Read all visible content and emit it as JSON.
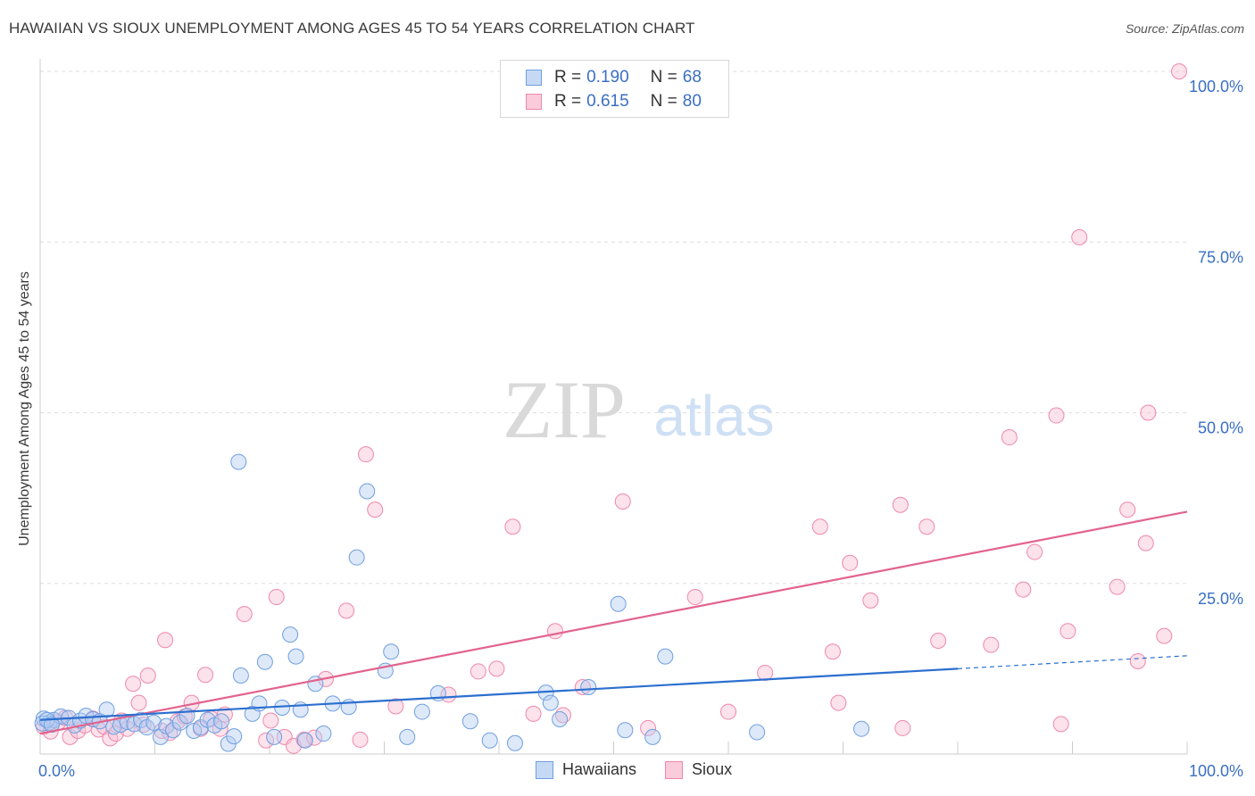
{
  "title": "HAWAIIAN VS SIOUX UNEMPLOYMENT AMONG AGES 45 TO 54 YEARS CORRELATION CHART",
  "source": "Source: ZipAtlas.com",
  "watermark": {
    "zip": "ZIP",
    "atlas": "atlas"
  },
  "legend": [
    {
      "r_label": "R =",
      "r_value": "0.190",
      "n_label": "N =",
      "n_value": "68"
    },
    {
      "r_label": "R =",
      "r_value": "0.615",
      "n_label": "N =",
      "n_value": "80"
    }
  ],
  "chart_data": {
    "type": "scatter",
    "title": "HAWAIIAN VS SIOUX UNEMPLOYMENT AMONG AGES 45 TO 54 YEARS CORRELATION CHART",
    "xlabel": "",
    "ylabel": "Unemployment Among Ages 45 to 54 years",
    "xlim": [
      0,
      100
    ],
    "ylim": [
      0,
      105
    ],
    "x_tick_labels": [
      "0.0%",
      "100.0%"
    ],
    "y_tick_labels": [
      {
        "value": 25,
        "label": "25.0%"
      },
      {
        "value": 50,
        "label": "50.0%"
      },
      {
        "value": 75,
        "label": "75.0%"
      },
      {
        "value": 100,
        "label": "100.0%"
      }
    ],
    "colors": {
      "Hawaiians": "#6f9fe0",
      "Sioux": "#ef88ab",
      "hawaiians_line": "#2b6fcf",
      "sioux_line": "#e2638c"
    },
    "series": [
      {
        "name": "Hawaiians",
        "trend": {
          "x0": 0,
          "y0": 5.0,
          "x1": 80,
          "y1": 12.5,
          "dash_to_x": 100,
          "dash_to_y": 14.4
        },
        "points": [
          [
            0.3,
            5.2
          ],
          [
            0.8,
            4.6
          ],
          [
            1.2,
            5.0
          ],
          [
            1.8,
            5.5
          ],
          [
            2.5,
            5.3
          ],
          [
            3.0,
            4.2
          ],
          [
            3.5,
            4.9
          ],
          [
            4.0,
            5.6
          ],
          [
            4.6,
            5.1
          ],
          [
            5.2,
            4.8
          ],
          [
            5.8,
            6.5
          ],
          [
            6.4,
            4.0
          ],
          [
            7.0,
            4.3
          ],
          [
            7.6,
            4.7
          ],
          [
            8.2,
            4.4
          ],
          [
            8.8,
            5.0
          ],
          [
            9.3,
            3.9
          ],
          [
            9.9,
            4.6
          ],
          [
            10.5,
            2.5
          ],
          [
            11.0,
            4.1
          ],
          [
            11.6,
            3.5
          ],
          [
            12.2,
            4.6
          ],
          [
            12.8,
            5.6
          ],
          [
            13.4,
            3.4
          ],
          [
            14.0,
            3.9
          ],
          [
            14.6,
            5.0
          ],
          [
            15.2,
            4.2
          ],
          [
            15.8,
            4.8
          ],
          [
            16.4,
            1.5
          ],
          [
            16.9,
            2.6
          ],
          [
            17.5,
            11.5
          ],
          [
            17.3,
            42.8
          ],
          [
            18.5,
            5.9
          ],
          [
            19.1,
            7.4
          ],
          [
            19.6,
            13.5
          ],
          [
            20.4,
            2.5
          ],
          [
            21.1,
            6.8
          ],
          [
            21.8,
            17.5
          ],
          [
            22.3,
            14.3
          ],
          [
            22.7,
            6.5
          ],
          [
            23.1,
            2.0
          ],
          [
            24.0,
            10.3
          ],
          [
            24.7,
            3.0
          ],
          [
            25.5,
            7.4
          ],
          [
            26.9,
            6.9
          ],
          [
            27.6,
            28.8
          ],
          [
            28.5,
            38.5
          ],
          [
            30.1,
            12.2
          ],
          [
            30.6,
            15.0
          ],
          [
            32.0,
            2.5
          ],
          [
            33.3,
            6.2
          ],
          [
            34.7,
            8.9
          ],
          [
            37.5,
            4.8
          ],
          [
            39.2,
            2.0
          ],
          [
            41.4,
            1.6
          ],
          [
            44.1,
            9.0
          ],
          [
            44.5,
            7.5
          ],
          [
            45.3,
            5.1
          ],
          [
            47.8,
            9.8
          ],
          [
            50.4,
            22.0
          ],
          [
            51.0,
            3.5
          ],
          [
            53.4,
            2.5
          ],
          [
            54.5,
            14.3
          ],
          [
            62.5,
            3.2
          ],
          [
            71.6,
            3.7
          ],
          [
            0.2,
            4.5
          ],
          [
            0.6,
            5.0
          ],
          [
            1.0,
            4.3
          ]
        ]
      },
      {
        "name": "Sioux",
        "trend": {
          "x0": 0,
          "y0": 3.0,
          "x1": 100,
          "y1": 35.5
        },
        "points": [
          [
            0.3,
            4.0
          ],
          [
            0.9,
            3.3
          ],
          [
            1.6,
            4.7
          ],
          [
            2.2,
            5.3
          ],
          [
            2.6,
            2.5
          ],
          [
            3.3,
            3.4
          ],
          [
            3.9,
            4.2
          ],
          [
            4.6,
            5.2
          ],
          [
            5.1,
            3.6
          ],
          [
            5.6,
            4.0
          ],
          [
            6.1,
            2.3
          ],
          [
            6.6,
            3.0
          ],
          [
            7.1,
            4.9
          ],
          [
            7.6,
            3.7
          ],
          [
            8.1,
            10.3
          ],
          [
            8.6,
            7.5
          ],
          [
            9.0,
            4.3
          ],
          [
            9.4,
            11.5
          ],
          [
            10.6,
            3.4
          ],
          [
            10.9,
            16.7
          ],
          [
            11.3,
            3.1
          ],
          [
            12.0,
            4.8
          ],
          [
            12.6,
            5.5
          ],
          [
            13.2,
            7.5
          ],
          [
            14.0,
            3.7
          ],
          [
            14.4,
            11.6
          ],
          [
            14.9,
            5.2
          ],
          [
            15.7,
            3.7
          ],
          [
            16.1,
            5.8
          ],
          [
            17.8,
            20.5
          ],
          [
            19.7,
            2.0
          ],
          [
            20.1,
            4.9
          ],
          [
            20.6,
            23.0
          ],
          [
            21.3,
            2.5
          ],
          [
            22.1,
            1.2
          ],
          [
            23.0,
            2.1
          ],
          [
            23.9,
            2.4
          ],
          [
            24.9,
            11.0
          ],
          [
            26.7,
            21.0
          ],
          [
            27.9,
            2.1
          ],
          [
            28.4,
            43.9
          ],
          [
            29.2,
            35.8
          ],
          [
            31.0,
            7.0
          ],
          [
            35.6,
            8.7
          ],
          [
            38.2,
            12.1
          ],
          [
            39.8,
            12.5
          ],
          [
            41.2,
            33.3
          ],
          [
            43.0,
            5.9
          ],
          [
            44.9,
            18.0
          ],
          [
            45.6,
            5.7
          ],
          [
            47.3,
            9.8
          ],
          [
            50.8,
            37.0
          ],
          [
            53.0,
            3.8
          ],
          [
            57.1,
            23.0
          ],
          [
            60.0,
            6.2
          ],
          [
            63.2,
            11.9
          ],
          [
            68.0,
            33.3
          ],
          [
            69.1,
            15.0
          ],
          [
            69.6,
            7.5
          ],
          [
            70.6,
            28.0
          ],
          [
            72.4,
            22.5
          ],
          [
            75.0,
            36.5
          ],
          [
            75.2,
            3.8
          ],
          [
            77.3,
            33.3
          ],
          [
            78.3,
            16.6
          ],
          [
            82.9,
            16.0
          ],
          [
            84.5,
            46.4
          ],
          [
            85.7,
            24.1
          ],
          [
            86.7,
            29.6
          ],
          [
            88.6,
            49.6
          ],
          [
            89.0,
            4.4
          ],
          [
            89.6,
            18.0
          ],
          [
            90.6,
            75.7
          ],
          [
            93.9,
            24.5
          ],
          [
            94.8,
            35.8
          ],
          [
            95.7,
            13.6
          ],
          [
            96.4,
            30.9
          ],
          [
            96.6,
            50.0
          ],
          [
            98.0,
            17.3
          ],
          [
            99.3,
            100.0
          ]
        ]
      }
    ]
  },
  "bottom_legend": [
    "Hawaiians",
    "Sioux"
  ]
}
